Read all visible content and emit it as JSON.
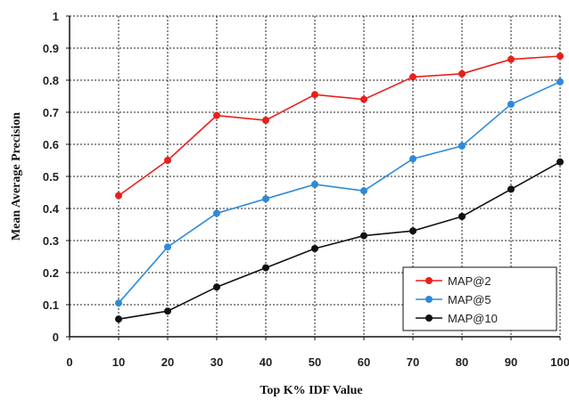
{
  "chart_data": {
    "type": "line",
    "title": "",
    "xlabel": "Top K% IDF Value",
    "ylabel": "Mean Average Precision",
    "x_ticks": [
      "0",
      "10",
      "20",
      "30",
      "40",
      "50",
      "60",
      "70",
      "80",
      "90",
      "100"
    ],
    "y_ticks": [
      "0",
      "0.1",
      "0.2",
      "0.3",
      "0.4",
      "0.5",
      "0.6",
      "0.7",
      "0.8",
      "0.9",
      "1"
    ],
    "xlim": [
      0,
      100
    ],
    "ylim": [
      0,
      1
    ],
    "grid": true,
    "grid_style": "dashed",
    "legend_position": "bottom-right",
    "x": [
      10,
      20,
      30,
      40,
      50,
      60,
      70,
      80,
      90,
      100
    ],
    "series": [
      {
        "name": "MAP@2",
        "color": "#e8201c",
        "values": [
          0.44,
          0.55,
          0.69,
          0.675,
          0.755,
          0.74,
          0.81,
          0.82,
          0.865,
          0.875
        ]
      },
      {
        "name": "MAP@5",
        "color": "#2e8ad8",
        "values": [
          0.105,
          0.28,
          0.385,
          0.43,
          0.475,
          0.455,
          0.555,
          0.595,
          0.725,
          0.795
        ]
      },
      {
        "name": "MAP@10",
        "color": "#111111",
        "values": [
          0.055,
          0.08,
          0.155,
          0.215,
          0.275,
          0.315,
          0.33,
          0.375,
          0.46,
          0.545
        ]
      }
    ]
  }
}
